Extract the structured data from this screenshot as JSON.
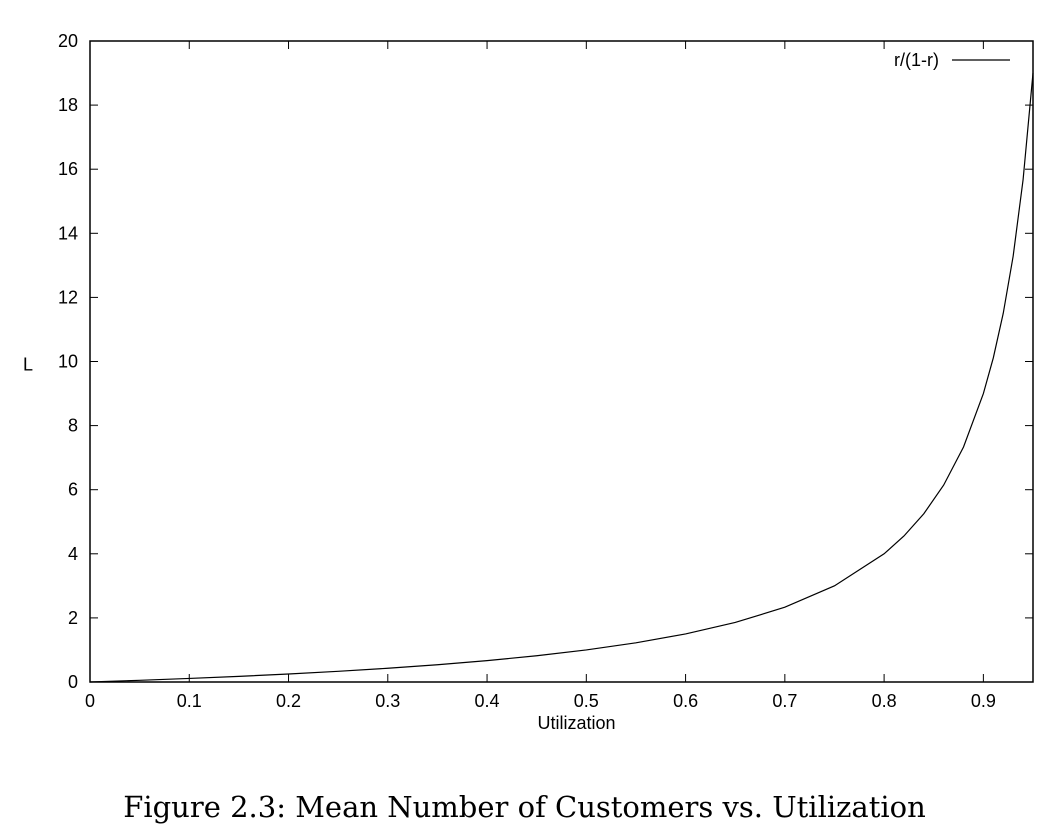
{
  "caption": "Figure 2.3: Mean Number of Customers vs. Utilization",
  "chart_data": {
    "type": "line",
    "title": "",
    "xlabel": "Utilization",
    "ylabel": "L",
    "xlim": [
      0,
      0.95
    ],
    "ylim": [
      0,
      20
    ],
    "x_ticks": [
      "0",
      "0.1",
      "0.2",
      "0.3",
      "0.4",
      "0.5",
      "0.6",
      "0.7",
      "0.8",
      "0.9"
    ],
    "y_ticks": [
      "0",
      "2",
      "4",
      "6",
      "8",
      "10",
      "12",
      "14",
      "16",
      "18",
      "20"
    ],
    "grid": false,
    "legend_position": "top-right",
    "series": [
      {
        "name": "r/(1-r)",
        "color": "#000000",
        "x": [
          0,
          0.05,
          0.1,
          0.15,
          0.2,
          0.25,
          0.3,
          0.35,
          0.4,
          0.45,
          0.5,
          0.55,
          0.6,
          0.65,
          0.7,
          0.75,
          0.8,
          0.82,
          0.84,
          0.86,
          0.88,
          0.9,
          0.91,
          0.92,
          0.93,
          0.94,
          0.95
        ],
        "y": [
          0,
          0.053,
          0.111,
          0.176,
          0.25,
          0.333,
          0.429,
          0.538,
          0.667,
          0.818,
          1.0,
          1.222,
          1.5,
          1.857,
          2.333,
          3.0,
          4.0,
          4.556,
          5.25,
          6.143,
          7.333,
          9.0,
          10.111,
          11.5,
          13.286,
          15.667,
          19.0
        ]
      }
    ]
  }
}
